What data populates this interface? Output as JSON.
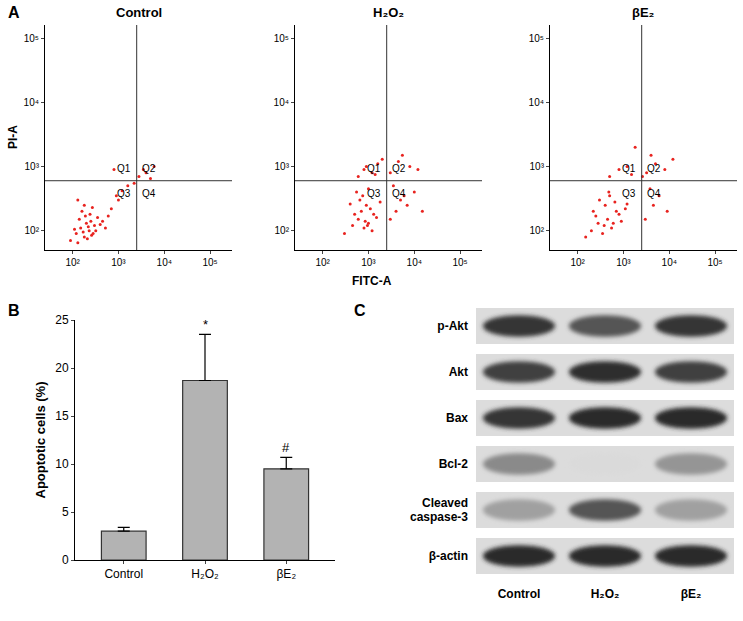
{
  "panels": [
    "A",
    "B",
    "C"
  ],
  "chart_data": [
    {
      "type": "scatter",
      "xlabel": "FITC-A",
      "ylabel": "PI-A",
      "log": true,
      "xlim": [
        25,
        300000
      ],
      "ylim": [
        50,
        160000
      ],
      "xticks": [
        {
          "value": 100,
          "label": "10²"
        },
        {
          "value": 1000,
          "label": "10³"
        },
        {
          "value": 10000,
          "label": "10⁴"
        },
        {
          "value": 100000,
          "label": "10⁵"
        }
      ],
      "yticks": [
        {
          "value": 100,
          "label": "10²"
        },
        {
          "value": 1000,
          "label": "10³"
        },
        {
          "value": 10000,
          "label": "10⁴"
        },
        {
          "value": 100000,
          "label": "10⁵"
        }
      ],
      "color": "#e8231f",
      "marker": "dot",
      "gates": {
        "x": 2500,
        "y": 600
      },
      "quadrant_labels": [
        "Q1",
        "Q2",
        "Q3",
        "Q4"
      ],
      "series": [
        {
          "name": "Control",
          "x": [
            90,
            120,
            150,
            180,
            200,
            230,
            260,
            300,
            140,
            170,
            210,
            250,
            110,
            130,
            190,
            220,
            280,
            350,
            400,
            160,
            240,
            320,
            450,
            520,
            600,
            180,
            270,
            130,
            700,
            900,
            1200,
            1600,
            2800,
            4000,
            3500,
            5000,
            6000,
            2200,
            1000,
            800
          ],
          "y": [
            70,
            90,
            110,
            80,
            130,
            100,
            85,
            120,
            150,
            95,
            75,
            140,
            105,
            65,
            170,
            115,
            90,
            160,
            125,
            200,
            180,
            100,
            140,
            110,
            170,
            250,
            230,
            300,
            220,
            350,
            420,
            500,
            700,
            800,
            900,
            650,
            1000,
            550,
            300,
            900
          ]
        },
        {
          "name": "H₂O₂",
          "x": [
            300,
            450,
            600,
            800,
            1000,
            1200,
            700,
            900,
            500,
            1500,
            650,
            850,
            1100,
            400,
            750,
            950,
            1300,
            1800,
            550,
            1000,
            600,
            800,
            1200,
            1600,
            2000,
            900,
            1400,
            3000,
            4000,
            5000,
            7000,
            10000,
            15000,
            3500,
            6000,
            3000,
            4500,
            8000,
            5500,
            12000
          ],
          "y": [
            90,
            120,
            150,
            110,
            130,
            100,
            200,
            250,
            180,
            160,
            300,
            140,
            220,
            260,
            350,
            120,
            180,
            280,
            400,
            450,
            700,
            900,
            800,
            1100,
            1300,
            1000,
            750,
            150,
            200,
            300,
            250,
            400,
            200,
            500,
            350,
            800,
            1200,
            1000,
            1500,
            900
          ]
        },
        {
          "name": "βE₂",
          "x": [
            150,
            200,
            280,
            350,
            450,
            550,
            700,
            250,
            400,
            600,
            800,
            300,
            500,
            900,
            1100,
            380,
            650,
            1200,
            220,
            480,
            500,
            800,
            1200,
            1500,
            3000,
            4500,
            6000,
            9000,
            3800,
            3200,
            5000,
            8000,
            12000,
            4000,
            2600,
            1800
          ],
          "y": [
            80,
            100,
            130,
            90,
            150,
            110,
            200,
            170,
            250,
            130,
            180,
            300,
            350,
            140,
            220,
            120,
            280,
            260,
            200,
            400,
            700,
            900,
            1000,
            750,
            150,
            250,
            350,
            200,
            450,
            800,
            1100,
            900,
            1300,
            1500,
            700,
            2000
          ]
        }
      ]
    },
    {
      "type": "bar",
      "ylabel": "Apoptotic cells (%)",
      "categories": [
        "Control",
        "H₂O₂",
        "βE₂"
      ],
      "values": [
        3.0,
        18.7,
        9.5
      ],
      "errors": [
        0.4,
        4.8,
        1.2
      ],
      "ylim": [
        0,
        25
      ],
      "yticks": [
        0,
        5,
        10,
        15,
        20,
        25
      ],
      "color": "#b3b3b3",
      "annotations": [
        {
          "category": "H₂O₂",
          "text": "*"
        },
        {
          "category": "βE₂",
          "text": "#"
        }
      ]
    }
  ],
  "blot": {
    "lanes": [
      "Control",
      "H₂O₂",
      "βE₂"
    ],
    "rows": [
      {
        "label": "p-Akt",
        "intensity": [
          0.85,
          0.7,
          0.85
        ]
      },
      {
        "label": "Akt",
        "intensity": [
          0.8,
          0.88,
          0.8
        ]
      },
      {
        "label": "Bax",
        "intensity": [
          0.85,
          0.9,
          0.9
        ]
      },
      {
        "label": "Bcl-2",
        "intensity": [
          0.45,
          0.08,
          0.4
        ]
      },
      {
        "label": "Cleaved caspase-3",
        "intensity": [
          0.35,
          0.7,
          0.35
        ]
      },
      {
        "label": "β-actin",
        "intensity": [
          0.9,
          0.9,
          0.9
        ]
      }
    ]
  }
}
